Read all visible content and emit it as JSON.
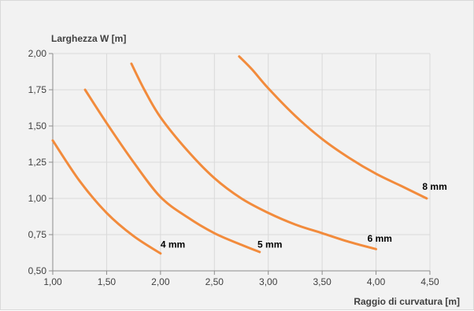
{
  "chart_data": {
    "type": "line",
    "title": "",
    "ylabel": "Larghezza W [m]",
    "xlabel": "Raggio di curvatura [m]",
    "xlim": [
      1.0,
      4.5
    ],
    "ylim": [
      0.5,
      2.0
    ],
    "x_ticks": [
      "1,00",
      "1,50",
      "2,00",
      "2,50",
      "3,00",
      "3,50",
      "4,00",
      "4,50"
    ],
    "y_ticks": [
      "0,50",
      "0,75",
      "1,00",
      "1,25",
      "1,50",
      "1,75",
      "2,00"
    ],
    "grid": true,
    "line_color": "#f28b3c",
    "series": [
      {
        "name": "4 mm",
        "x": [
          1.0,
          1.25,
          1.5,
          1.75,
          2.0
        ],
        "y": [
          1.4,
          1.12,
          0.9,
          0.74,
          0.62
        ],
        "label_at": [
          2.0,
          0.66
        ]
      },
      {
        "name": "5 mm",
        "x": [
          1.3,
          1.5,
          1.75,
          2.0,
          2.25,
          2.5,
          2.75,
          2.92
        ],
        "y": [
          1.75,
          1.52,
          1.25,
          1.01,
          0.87,
          0.76,
          0.68,
          0.63
        ],
        "label_at": [
          2.9,
          0.66
        ]
      },
      {
        "name": "6 mm",
        "x": [
          1.73,
          1.85,
          2.0,
          2.25,
          2.5,
          2.75,
          3.0,
          3.25,
          3.5,
          3.75,
          4.0
        ],
        "y": [
          1.93,
          1.75,
          1.56,
          1.33,
          1.14,
          1.0,
          0.9,
          0.82,
          0.76,
          0.7,
          0.65
        ],
        "label_at": [
          3.92,
          0.7
        ]
      },
      {
        "name": "8 mm",
        "x": [
          2.73,
          2.85,
          3.0,
          3.25,
          3.5,
          3.75,
          4.0,
          4.25,
          4.47
        ],
        "y": [
          1.98,
          1.89,
          1.76,
          1.57,
          1.41,
          1.28,
          1.17,
          1.08,
          1.0
        ],
        "label_at": [
          4.43,
          1.06
        ]
      }
    ]
  }
}
